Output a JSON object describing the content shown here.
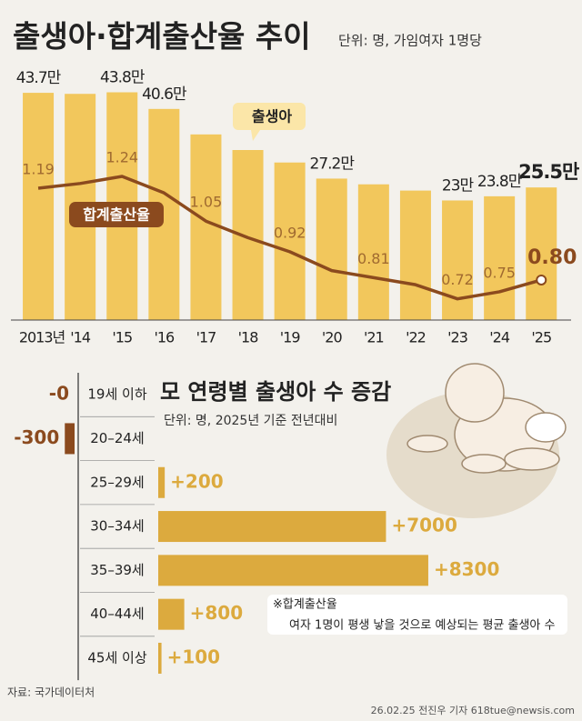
{
  "chart_data": [
    {
      "type": "bar",
      "title": "출생아·합계출산율 추이",
      "subtitle": "단위: 명, 가임여자 1명당",
      "categories": [
        "2013년",
        "'14",
        "'15",
        "'16",
        "'17",
        "'18",
        "'19",
        "'20",
        "'21",
        "'22",
        "'23",
        "'24",
        "'25"
      ],
      "series": [
        {
          "name": "출생아",
          "color": "#f2c75c",
          "values": [
            43.7,
            43.5,
            43.8,
            40.6,
            35.7,
            32.7,
            30.3,
            27.2,
            26.1,
            24.9,
            23,
            23.8,
            25.5
          ],
          "value_labels": [
            "43.7만",
            null,
            "43.8만",
            "40.6만",
            null,
            null,
            null,
            "27.2만",
            null,
            null,
            "23만",
            "23.8만",
            "25.5만"
          ]
        },
        {
          "name": "합계출산율",
          "color": "#8b4a1e",
          "axis": "y2",
          "type": "line",
          "values": [
            1.19,
            1.21,
            1.24,
            1.17,
            1.05,
            0.98,
            0.92,
            0.84,
            0.81,
            0.78,
            0.72,
            0.75,
            0.8
          ],
          "value_labels": [
            "1.19",
            null,
            "1.24",
            null,
            "1.05",
            null,
            "0.92",
            null,
            "0.81",
            null,
            "0.72",
            "0.75",
            "0.80"
          ]
        }
      ],
      "ylim": [
        0,
        48
      ],
      "y2lim": [
        0.63,
        1.69
      ]
    },
    {
      "type": "horizontal-bar",
      "title": "모 연령별 출생아 수 증감",
      "subtitle": "단위: 명, 2025년 기준 전년대비",
      "categories": [
        "19세 이하",
        "20–24세",
        "25–29세",
        "30–34세",
        "35–39세",
        "40–44세",
        "45세 이상"
      ],
      "values": [
        0,
        -300,
        200,
        7000,
        8300,
        800,
        100
      ],
      "value_labels": [
        "-0",
        "-300",
        "+200",
        "+7000",
        "+8300",
        "+800",
        "+100"
      ],
      "colors": {
        "positive": "#dcaa3e",
        "negative": "#8b4a1e"
      },
      "xlim": [
        0,
        9000
      ]
    }
  ],
  "note": {
    "title": "※합계출산율",
    "text": "여자 1명이 평생 낳을 것으로 예상되는 평균 출생아 수"
  },
  "source": "자료: 국가데이터처",
  "credit": "26.02.25 전진우 기자 618tue@newsis.com"
}
